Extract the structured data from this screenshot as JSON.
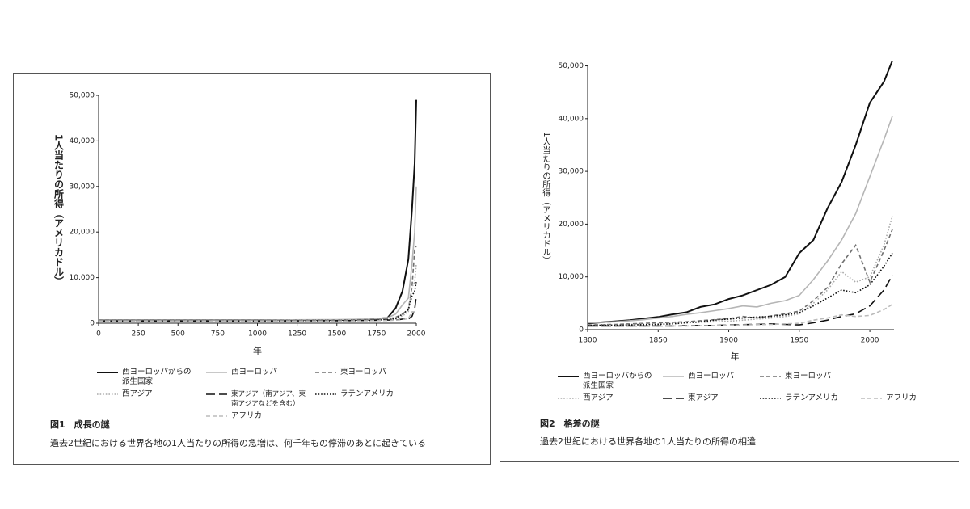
{
  "chart_data": [
    {
      "type": "line",
      "title": "図1　成長の謎",
      "subtitle": "過去2世紀における世界各地の1人当たりの所得の急増は、何千年もの停滞のあとに起きている",
      "xlabel": "年",
      "ylabel": "1人当たりの所得（アメリカドル）",
      "x": [
        0,
        1000,
        1500,
        1700,
        1820,
        1870,
        1913,
        1950,
        1973,
        1990,
        2000
      ],
      "xlim": [
        0,
        2000
      ],
      "xticks": [
        0,
        250,
        500,
        750,
        1000,
        1250,
        1500,
        1750,
        2000
      ],
      "ylim": [
        0,
        50000
      ],
      "yticks": [
        0,
        {
          "value": 10000,
          "label": "10,000"
        },
        {
          "value": 20000,
          "label": "20,000"
        },
        {
          "value": 30000,
          "label": "30,000"
        },
        {
          "value": 40000,
          "label": "40,000"
        },
        {
          "value": 50000,
          "label": "50,000"
        }
      ],
      "series": [
        {
          "name": "西ヨーロッパからの派生国家",
          "color": "#111111",
          "style": "solid",
          "values": [
            700,
            700,
            700,
            800,
            1200,
            3300,
            7000,
            14000,
            25000,
            35000,
            49000
          ]
        },
        {
          "name": "西ヨーロッパ",
          "color": "#b5b5b5",
          "style": "solid",
          "values": [
            700,
            700,
            800,
            900,
            1200,
            2000,
            4000,
            5500,
            13000,
            20000,
            30000
          ]
        },
        {
          "name": "東ヨーロッパ",
          "color": "#707070",
          "style": "dashed",
          "values": [
            600,
            600,
            700,
            800,
            900,
            1300,
            2000,
            3000,
            8000,
            16000,
            17000
          ]
        },
        {
          "name": "西アジア",
          "color": "#aaaaaa",
          "style": "dotted",
          "values": [
            600,
            600,
            650,
            700,
            900,
            1200,
            1600,
            2500,
            8000,
            9000,
            13000
          ]
        },
        {
          "name": "東アジア（南アジア、東南アジアなどを含む）",
          "color": "#111111",
          "style": "longdash",
          "values": [
            500,
            500,
            550,
            600,
            700,
            700,
            900,
            900,
            1500,
            3000,
            6000
          ]
        },
        {
          "name": "ラテンアメリカ",
          "color": "#111111",
          "style": "dotted",
          "values": [
            500,
            500,
            550,
            600,
            800,
            1000,
            2000,
            3000,
            6000,
            7000,
            9000
          ]
        },
        {
          "name": "アフリカ",
          "color": "#bbbbbb",
          "style": "dashed",
          "values": [
            500,
            500,
            500,
            550,
            600,
            650,
            800,
            1000,
            2500,
            2500,
            3000
          ]
        }
      ]
    },
    {
      "type": "line",
      "title": "図2　格差の謎",
      "subtitle": "過去2世紀における世界各地の1人当たりの所得の相違",
      "xlabel": "年",
      "ylabel": "1人当たりの所得（アメリカドル）",
      "x": [
        1800,
        1810,
        1820,
        1830,
        1840,
        1850,
        1860,
        1870,
        1880,
        1890,
        1900,
        1910,
        1920,
        1930,
        1940,
        1950,
        1960,
        1970,
        1980,
        1990,
        2000,
        2010,
        2016
      ],
      "xlim": [
        1800,
        2020
      ],
      "xticks": [
        1800,
        1850,
        1900,
        1950,
        2000
      ],
      "ylim": [
        0,
        51000
      ],
      "yticks": [
        0,
        {
          "value": 10000,
          "label": "10,000"
        },
        {
          "value": 20000,
          "label": "20,000"
        },
        {
          "value": 30000,
          "label": "30,000"
        },
        {
          "value": 40000,
          "label": "40,000"
        },
        {
          "value": 50000,
          "label": "50,000"
        }
      ],
      "series": [
        {
          "name": "西ヨーロッパからの派生国家",
          "color": "#111111",
          "style": "solid",
          "values": [
            1200,
            1400,
            1600,
            1800,
            2100,
            2400,
            2900,
            3300,
            4300,
            4800,
            5800,
            6500,
            7500,
            8500,
            10000,
            14500,
            17000,
            23000,
            28000,
            35000,
            43000,
            47000,
            51000
          ]
        },
        {
          "name": "西ヨーロッパ",
          "color": "#b5b5b5",
          "style": "solid",
          "values": [
            1300,
            1400,
            1500,
            1700,
            1900,
            2200,
            2500,
            2900,
            3200,
            3600,
            4000,
            4500,
            4300,
            5000,
            5500,
            6500,
            9500,
            13000,
            17000,
            22000,
            29000,
            36000,
            40500
          ]
        },
        {
          "name": "東ヨーロッパ",
          "color": "#707070",
          "style": "dashed",
          "values": [
            900,
            950,
            1000,
            1100,
            1200,
            1300,
            1400,
            1500,
            1700,
            1900,
            2100,
            2500,
            2200,
            2600,
            3000,
            3500,
            5500,
            8000,
            12500,
            16000,
            9000,
            15000,
            19000
          ]
        },
        {
          "name": "西アジア",
          "color": "#aaaaaa",
          "style": "dotted",
          "values": [
            900,
            900,
            950,
            1000,
            1050,
            1100,
            1200,
            1300,
            1400,
            1500,
            1600,
            1800,
            2000,
            2200,
            2500,
            3000,
            5000,
            7500,
            11000,
            9000,
            10000,
            16000,
            21500
          ]
        },
        {
          "name": "東アジア",
          "color": "#111111",
          "style": "longdash",
          "values": [
            700,
            700,
            700,
            700,
            700,
            700,
            700,
            750,
            800,
            800,
            900,
            950,
            1000,
            1100,
            1000,
            900,
            1300,
            1800,
            2500,
            3000,
            4500,
            7500,
            10300
          ]
        },
        {
          "name": "ラテンアメリカ",
          "color": "#111111",
          "style": "dotted",
          "values": [
            800,
            800,
            850,
            900,
            950,
            1000,
            1100,
            1300,
            1500,
            1800,
            2000,
            2200,
            2400,
            2500,
            2800,
            3200,
            4500,
            6000,
            7500,
            7000,
            8500,
            12000,
            14500
          ]
        },
        {
          "name": "アフリカ",
          "color": "#bbbbbb",
          "style": "dashed",
          "values": [
            600,
            600,
            600,
            650,
            650,
            650,
            700,
            700,
            750,
            800,
            850,
            900,
            950,
            1000,
            1100,
            1200,
            1800,
            2200,
            2800,
            2500,
            2700,
            3800,
            4800
          ]
        }
      ]
    }
  ]
}
